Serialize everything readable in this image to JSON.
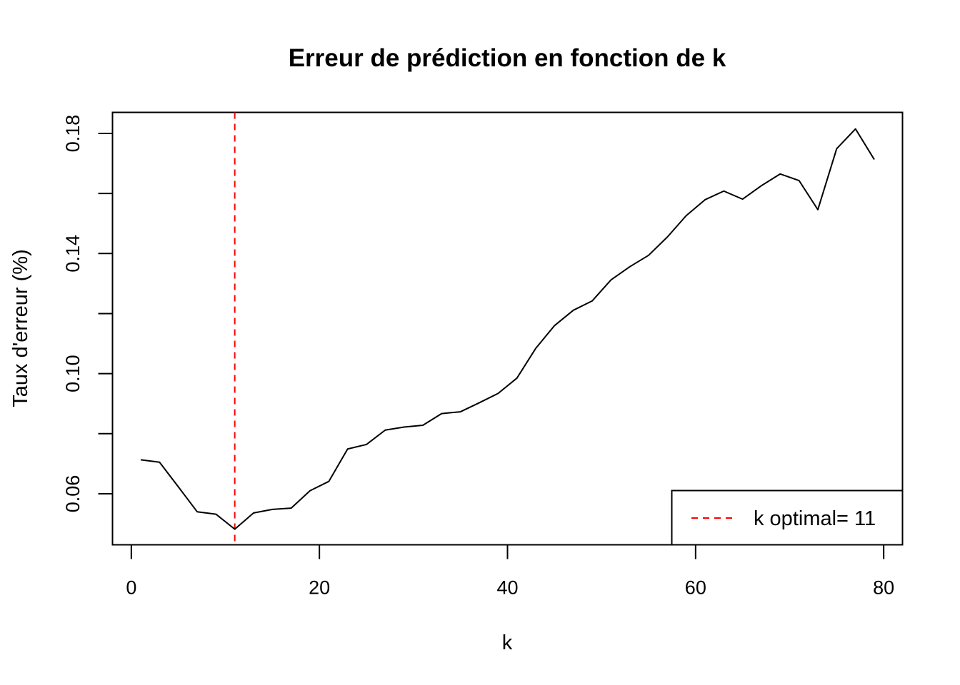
{
  "chart_data": {
    "type": "line",
    "title": "Erreur de prédiction en fonction de k",
    "xlabel": "k",
    "ylabel": "Taux d'erreur (%)",
    "xlim": [
      -2,
      82
    ],
    "ylim": [
      0.043,
      0.187
    ],
    "x_ticks": [
      0,
      20,
      40,
      60,
      80
    ],
    "x_tick_labels": [
      "0",
      "20",
      "40",
      "60",
      "80"
    ],
    "y_ticks": [
      0.06,
      0.08,
      0.1,
      0.12,
      0.14,
      0.16,
      0.18
    ],
    "y_tick_labels": [
      "0.06",
      "",
      "0.10",
      "",
      "0.14",
      "",
      "0.18"
    ],
    "grid": false,
    "legend_position": "bottom-right",
    "series": [
      {
        "color": "#000000",
        "x": [
          1,
          3,
          5,
          7,
          9,
          11,
          13,
          15,
          17,
          19,
          21,
          23,
          25,
          27,
          29,
          31,
          33,
          35,
          37,
          39,
          41,
          43,
          45,
          47,
          49,
          51,
          53,
          55,
          57,
          59,
          61,
          63,
          65,
          67,
          69,
          71,
          73,
          75,
          77,
          79
        ],
        "values": [
          0.0713,
          0.0705,
          0.0623,
          0.054,
          0.0532,
          0.0482,
          0.0536,
          0.0548,
          0.0552,
          0.061,
          0.0641,
          0.0749,
          0.0764,
          0.0812,
          0.0822,
          0.0828,
          0.0867,
          0.0873,
          0.0903,
          0.0934,
          0.0985,
          0.1084,
          0.116,
          0.1211,
          0.1242,
          0.1312,
          0.1356,
          0.1394,
          0.1455,
          0.1526,
          0.1579,
          0.1608,
          0.1581,
          0.1626,
          0.1665,
          0.1643,
          0.1546,
          0.1749,
          0.1815,
          0.1713
        ]
      }
    ],
    "vline": {
      "x": 11,
      "color": "#ff0000",
      "style": "dashed"
    },
    "legend": {
      "label": "k optimal= 11"
    }
  }
}
